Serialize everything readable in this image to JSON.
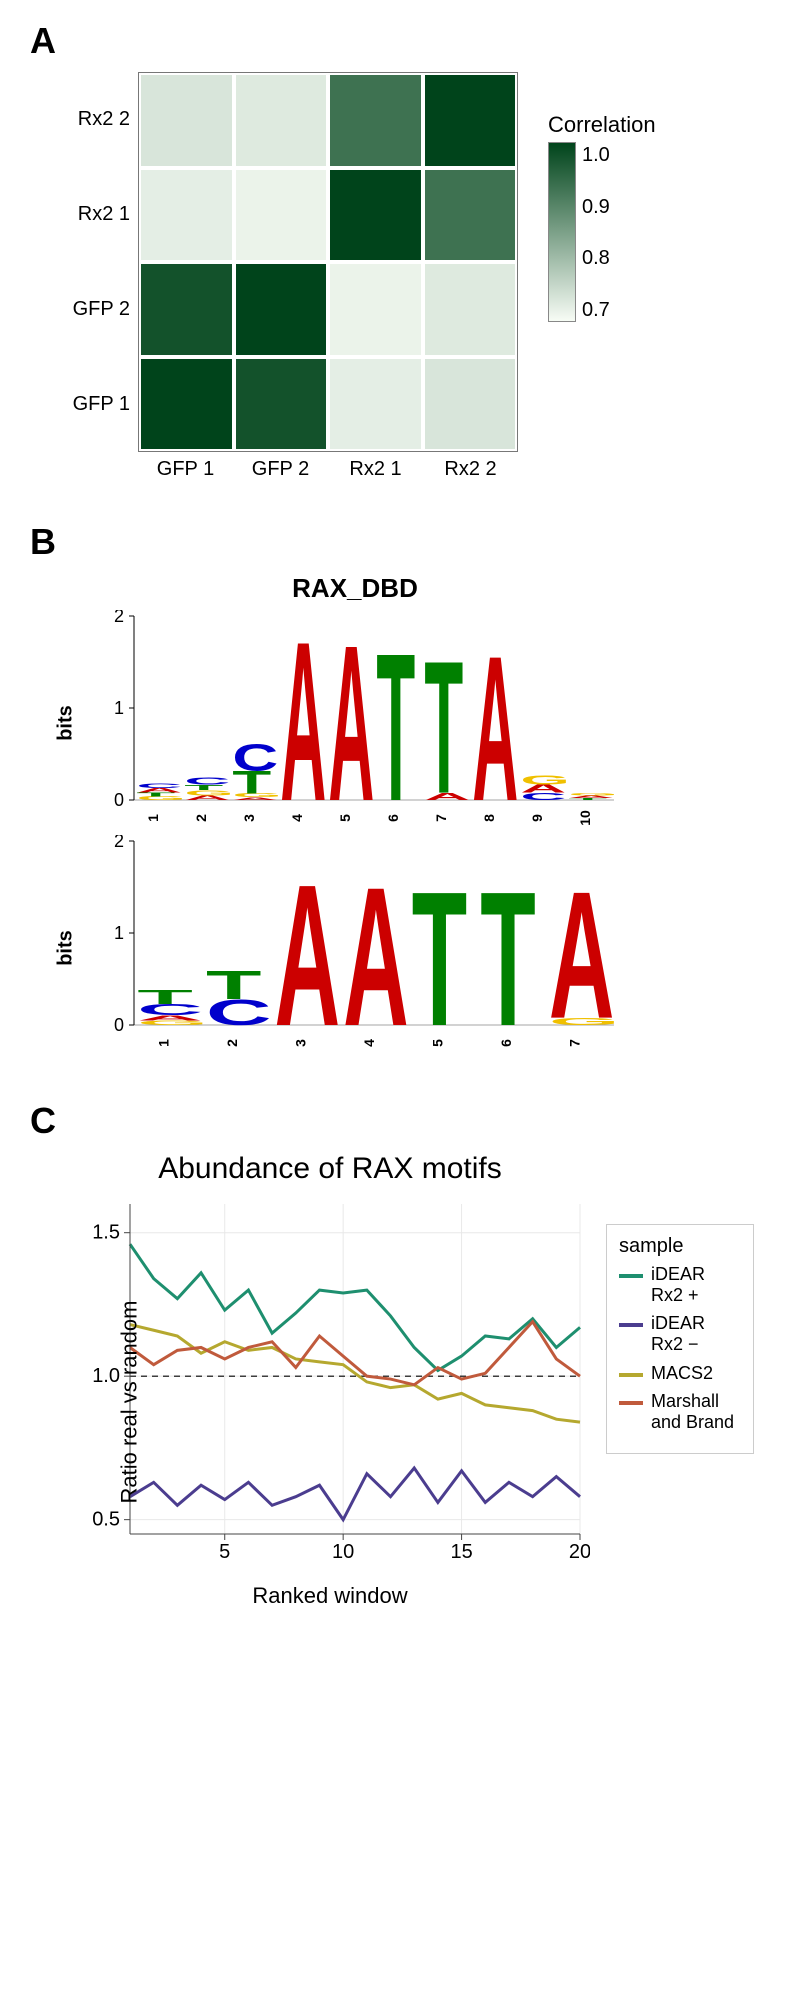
{
  "panelA": {
    "label": "A",
    "ylabels": [
      "Rx2 2",
      "Rx2 1",
      "GFP 2",
      "GFP 1"
    ],
    "xlabels": [
      "GFP 1",
      "GFP 2",
      "Rx2 1",
      "Rx2 2"
    ],
    "matrix": [
      [
        0.65,
        0.64,
        0.9,
        1.0
      ],
      [
        0.63,
        0.62,
        1.0,
        0.9
      ],
      [
        0.97,
        1.0,
        0.62,
        0.64
      ],
      [
        1.0,
        0.97,
        0.63,
        0.65
      ]
    ],
    "color_low": "#f7fcf5",
    "color_high": "#00441b",
    "legend": {
      "title": "Correlation",
      "ticks": [
        "1.0",
        "0.9",
        "0.8",
        "0.7"
      ]
    }
  },
  "panelB": {
    "label": "B",
    "title": "RAX_DBD",
    "ylabel": "bits",
    "logos": [
      {
        "ymax": 2,
        "yticks": [
          0,
          1,
          2
        ],
        "positions": 10,
        "cols": [
          [
            [
              "A",
              0.05
            ],
            [
              "C",
              0.05
            ],
            [
              "G",
              0.04
            ],
            [
              "T",
              0.04
            ]
          ],
          [
            [
              "C",
              0.08
            ],
            [
              "G",
              0.06
            ],
            [
              "T",
              0.06
            ],
            [
              "A",
              0.05
            ]
          ],
          [
            [
              "C",
              0.3
            ],
            [
              "T",
              0.25
            ],
            [
              "G",
              0.04
            ],
            [
              "A",
              0.03
            ]
          ],
          [
            [
              "A",
              1.78
            ]
          ],
          [
            [
              "A",
              1.74
            ]
          ],
          [
            [
              "T",
              1.65
            ]
          ],
          [
            [
              "T",
              1.48
            ],
            [
              "A",
              0.08
            ]
          ],
          [
            [
              "A",
              1.62
            ]
          ],
          [
            [
              "G",
              0.1
            ],
            [
              "A",
              0.09
            ],
            [
              "C",
              0.08
            ]
          ],
          [
            [
              "A",
              0.03
            ],
            [
              "G",
              0.03
            ],
            [
              "T",
              0.02
            ]
          ]
        ]
      },
      {
        "ymax": 2,
        "yticks": [
          0,
          1,
          2
        ],
        "positions": 7,
        "cols": [
          [
            [
              "T",
              0.16
            ],
            [
              "C",
              0.12
            ],
            [
              "A",
              0.06
            ],
            [
              "G",
              0.05
            ]
          ],
          [
            [
              "T",
              0.32
            ],
            [
              "C",
              0.28
            ]
          ],
          [
            [
              "A",
              1.58
            ]
          ],
          [
            [
              "A",
              1.55
            ]
          ],
          [
            [
              "T",
              1.5
            ]
          ],
          [
            [
              "T",
              1.5
            ]
          ],
          [
            [
              "A",
              1.42
            ],
            [
              "G",
              0.08
            ]
          ]
        ]
      }
    ],
    "colors": {
      "A": "#cc0000",
      "T": "#008000",
      "C": "#0000cc",
      "G": "#f0c000"
    }
  },
  "panelC": {
    "label": "C",
    "title": "Abundance of RAX motifs",
    "ylabel": "Ratio real vs random",
    "xlabel": "Ranked window",
    "xlim": [
      1,
      20
    ],
    "xticks": [
      5,
      10,
      15,
      20
    ],
    "ylim": [
      0.45,
      1.6
    ],
    "yticks": [
      0.5,
      1.0,
      1.5
    ],
    "hline": 1.0,
    "grid_color": "#e8e8e8",
    "bg": "#ffffff",
    "line_width": 3,
    "samples": [
      {
        "name": "iDEAR Rx2 +",
        "color": "#1e8f6f",
        "y": [
          1.46,
          1.34,
          1.27,
          1.36,
          1.23,
          1.3,
          1.15,
          1.22,
          1.3,
          1.29,
          1.3,
          1.21,
          1.1,
          1.02,
          1.07,
          1.14,
          1.13,
          1.2,
          1.1,
          1.17
        ]
      },
      {
        "name": "iDEAR Rx2 −",
        "color": "#4b3d8f",
        "y": [
          0.58,
          0.63,
          0.55,
          0.62,
          0.57,
          0.63,
          0.55,
          0.58,
          0.62,
          0.5,
          0.66,
          0.58,
          0.68,
          0.56,
          0.67,
          0.56,
          0.63,
          0.58,
          0.65,
          0.58
        ]
      },
      {
        "name": "MACS2",
        "color": "#b5a82f",
        "y": [
          1.18,
          1.16,
          1.14,
          1.08,
          1.12,
          1.09,
          1.1,
          1.06,
          1.05,
          1.04,
          0.98,
          0.96,
          0.97,
          0.92,
          0.94,
          0.9,
          0.89,
          0.88,
          0.85,
          0.84
        ]
      },
      {
        "name": "Marshall and Brand",
        "color": "#c05a3c",
        "y": [
          1.1,
          1.04,
          1.09,
          1.1,
          1.06,
          1.1,
          1.12,
          1.03,
          1.14,
          1.07,
          1.0,
          0.99,
          0.97,
          1.03,
          0.99,
          1.01,
          1.1,
          1.19,
          1.06,
          1.0
        ]
      }
    ]
  }
}
